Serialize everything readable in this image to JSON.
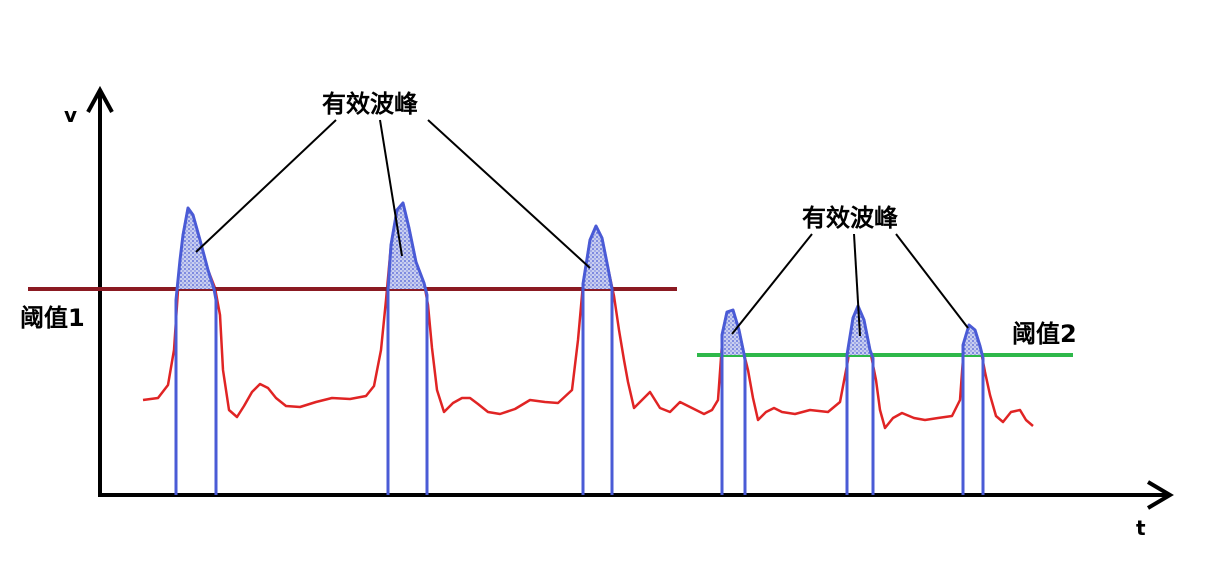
{
  "axes": {
    "y_label": "v",
    "x_label": "t"
  },
  "annotations": {
    "group1_label": "有效波峰",
    "group2_label": "有效波峰"
  },
  "thresholds": [
    {
      "label": "阈值1",
      "color": "#8b1a22"
    },
    {
      "label": "阈值2",
      "color": "#2eb84a"
    }
  ],
  "colors": {
    "signal": "#e02424",
    "peak_outline": "#4a5bd6",
    "peak_fill": "#8f9de0",
    "axis": "#000000"
  }
}
